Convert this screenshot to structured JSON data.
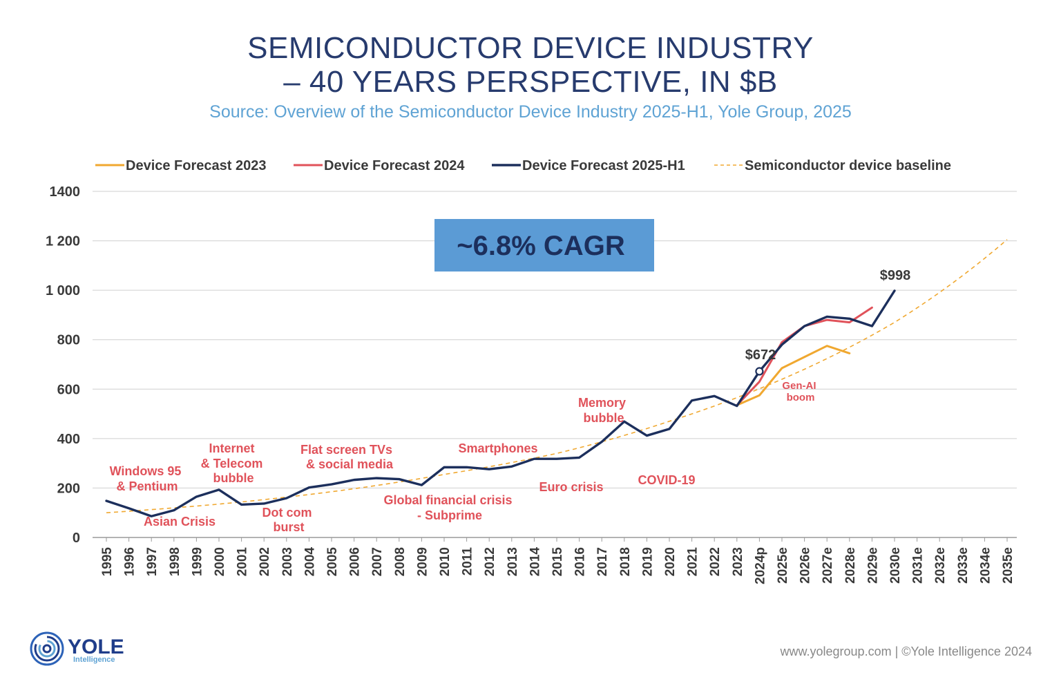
{
  "chart_data": {
    "type": "line",
    "title_line1": "SEMICONDUCTOR DEVICE INDUSTRY",
    "title_line2": "– 40 YEARS PERSPECTIVE, IN $B",
    "subtitle": "Source: Overview of the Semiconductor Device Industry 2025-H1, Yole Group, 2025",
    "ylim": [
      0,
      1400
    ],
    "yticks": [
      "0",
      "200",
      "400",
      "600",
      "800",
      "1 000",
      "1 200",
      "1400"
    ],
    "ytick_values": [
      0,
      200,
      400,
      600,
      800,
      1000,
      1200,
      1400
    ],
    "categories": [
      "1995",
      "1996",
      "1997",
      "1998",
      "1999",
      "2000",
      "2001",
      "2002",
      "2003",
      "2004",
      "2005",
      "2006",
      "2007",
      "2008",
      "2009",
      "2010",
      "2011",
      "2012",
      "2013",
      "2014",
      "2015",
      "2016",
      "2017",
      "2018",
      "2019",
      "2020",
      "2021",
      "2022",
      "2023",
      "2024p",
      "2025e",
      "2026e",
      "2027e",
      "2028e",
      "2029e",
      "2030e",
      "2031e",
      "2032e",
      "2033e",
      "2034e",
      "2035e"
    ],
    "legend": [
      "Device Forecast 2023",
      "Device Forecast 2024",
      "Device Forecast 2025-H1",
      "Semiconductor device baseline"
    ],
    "series": [
      {
        "name": "Device Forecast 2023",
        "color": "#f0a830",
        "style": "solid",
        "x": [
          "2023",
          "2024p",
          "2025e",
          "2026e",
          "2027e",
          "2028e"
        ],
        "values": [
          535,
          575,
          685,
          730,
          775,
          745
        ]
      },
      {
        "name": "Device Forecast 2024",
        "color": "#e0525a",
        "style": "solid",
        "x": [
          "2023",
          "2024p",
          "2025e",
          "2026e",
          "2027e",
          "2028e",
          "2029e"
        ],
        "values": [
          535,
          630,
          790,
          855,
          880,
          870,
          930
        ]
      },
      {
        "name": "Device Forecast 2025-H1",
        "color": "#1c2f5c",
        "style": "solid",
        "x": [
          "1995",
          "1996",
          "1997",
          "1998",
          "1999",
          "2000",
          "2001",
          "2002",
          "2003",
          "2004",
          "2005",
          "2006",
          "2007",
          "2008",
          "2009",
          "2010",
          "2011",
          "2012",
          "2013",
          "2014",
          "2015",
          "2016",
          "2017",
          "2018",
          "2019",
          "2020",
          "2021",
          "2022",
          "2023",
          "2024p",
          "2025e",
          "2026e",
          "2027e",
          "2028e",
          "2029e",
          "2030e"
        ],
        "values": [
          148,
          118,
          86,
          110,
          165,
          193,
          133,
          137,
          159,
          202,
          215,
          233,
          240,
          236,
          212,
          284,
          284,
          276,
          287,
          318,
          318,
          323,
          387,
          469,
          412,
          439,
          554,
          572,
          532,
          672,
          780,
          855,
          893,
          885,
          855,
          998
        ]
      },
      {
        "name": "Semiconductor device baseline",
        "color": "#f0a830",
        "style": "dashed",
        "x": [
          "1995",
          "2000",
          "2005",
          "2010",
          "2015",
          "2020",
          "2025e",
          "2030e",
          "2035e"
        ],
        "values": [
          100,
          135,
          185,
          255,
          340,
          470,
          640,
          870,
          1205
        ]
      }
    ],
    "data_labels": [
      {
        "text": "$998",
        "x": "2030e",
        "value": 998
      },
      {
        "text": "$672",
        "x": "2024p",
        "value": 672
      }
    ],
    "annotations": [
      {
        "lines": [
          "Windows 95",
          "& Pentium"
        ]
      },
      {
        "lines": [
          "Asian Crisis"
        ]
      },
      {
        "lines": [
          "Internet",
          "& Telecom",
          "bubble"
        ]
      },
      {
        "lines": [
          "Dot com",
          "burst"
        ]
      },
      {
        "lines": [
          "Flat screen  TVs",
          "& social media"
        ]
      },
      {
        "lines": [
          "Global financial crisis",
          "- Subprime"
        ]
      },
      {
        "lines": [
          "Smartphones"
        ]
      },
      {
        "lines": [
          "Euro crisis"
        ]
      },
      {
        "lines": [
          "Memory",
          "bubble"
        ]
      },
      {
        "lines": [
          "COVID-19"
        ]
      },
      {
        "lines": [
          "Gen-AI",
          "boom"
        ]
      }
    ],
    "cagr_label": "~6.8% CAGR",
    "cagr_color": "#5b9bd5"
  },
  "footer": {
    "logo_name": "YOLE",
    "logo_sub": "Intelligence",
    "credit": "www.yolegroup.com | ©Yole Intelligence 2024"
  },
  "icons": {
    "logo": "yole-spiral-icon"
  }
}
